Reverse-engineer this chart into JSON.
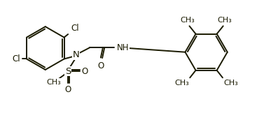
{
  "bg_color": "#ffffff",
  "line_color": "#1a1a00",
  "line_width": 1.4,
  "font_size": 8.5,
  "xlim": [
    0,
    10.5
  ],
  "ylim": [
    0,
    4.5
  ],
  "figsize": [
    3.97,
    1.72
  ],
  "dpi": 100
}
